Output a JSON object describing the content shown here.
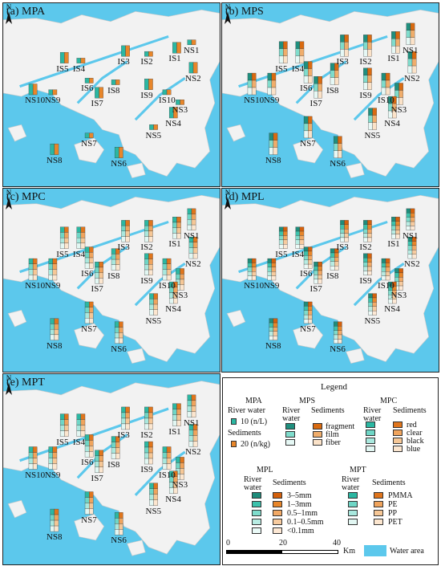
{
  "colors": {
    "water": "#5cc8ec",
    "land": "#f2f2f2",
    "orange": "#e8862a",
    "teal": "#2bb7a2"
  },
  "panels": [
    {
      "id": "a",
      "title": "(a) MPA"
    },
    {
      "id": "b",
      "title": "(b) MPS"
    },
    {
      "id": "c",
      "title": "(c) MPC"
    },
    {
      "id": "d",
      "title": "(d) MPL"
    },
    {
      "id": "e",
      "title": "(e) MPT"
    }
  ],
  "north_label": "N",
  "sites": [
    "NS1",
    "IS1",
    "IS2",
    "IS3",
    "IS4",
    "IS5",
    "IS6",
    "IS7",
    "IS8",
    "IS9",
    "IS10",
    "NS2",
    "NS3",
    "NS4",
    "NS5",
    "NS6",
    "NS7",
    "NS8",
    "NS9",
    "NS10"
  ],
  "legend": {
    "title": "Legend",
    "mpa": {
      "title": "MPA",
      "river": "River water",
      "river_val": "10 (n/L)",
      "sed": "Sediments",
      "sed_val": "20 (n/kg)"
    },
    "mps": {
      "title": "MPS",
      "river": "River water",
      "sed": "Sediments",
      "items": [
        "fragment",
        "film",
        "fiber"
      ]
    },
    "mpc": {
      "title": "MPC",
      "river": "River water",
      "sed": "Sediments",
      "items": [
        "red",
        "clear",
        "black",
        "blue"
      ]
    },
    "mpl": {
      "title": "MPL",
      "river": "River water",
      "sed": "Sediments",
      "items": [
        "3–5mm",
        "1–3mm",
        "0.5–1mm",
        "0.1–0.5mm",
        "<0.1mm"
      ]
    },
    "mpt": {
      "title": "MPT",
      "river": "River water",
      "sed": "Sediments",
      "items": [
        "PMMA",
        "PE",
        "PP",
        "PET"
      ]
    },
    "scale": {
      "ticks": [
        "0",
        "20",
        "40"
      ],
      "unit": "Km"
    },
    "water_area": "Water area"
  }
}
